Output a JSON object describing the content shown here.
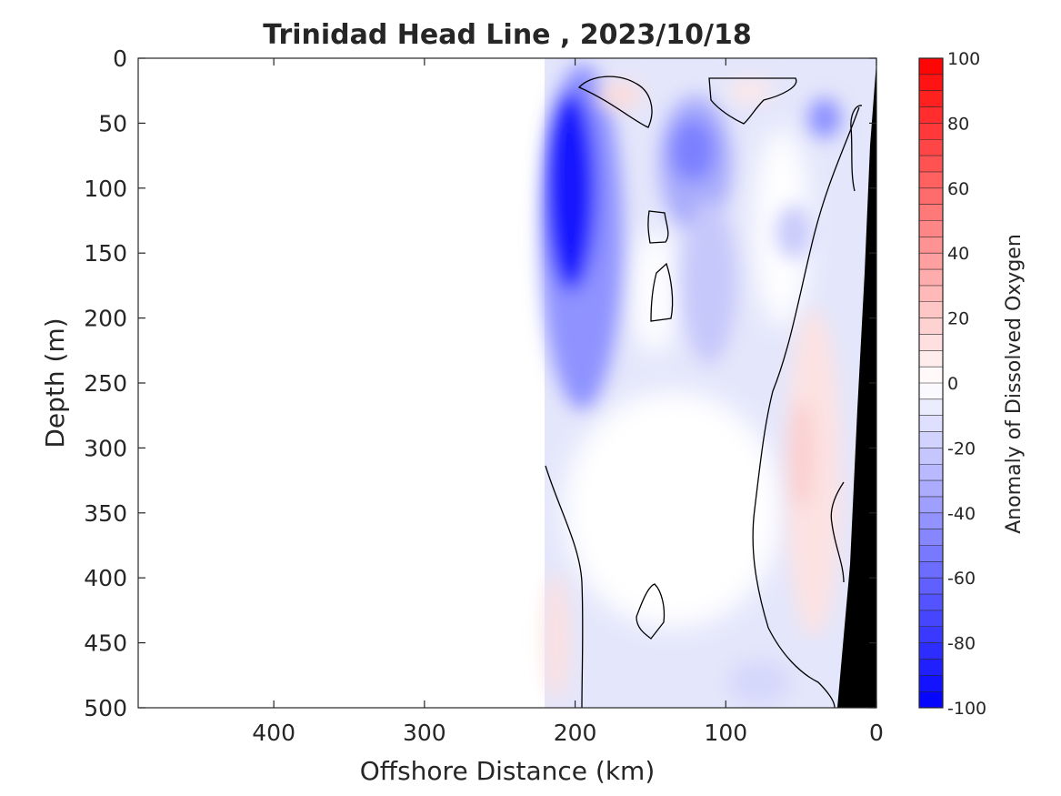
{
  "chart_data": {
    "type": "heatmap",
    "title": "Trinidad Head Line , 2023/10/18",
    "xlabel": "Offshore Distance (km)",
    "ylabel": "Depth (m)",
    "xlim": [
      490,
      0
    ],
    "ylim": [
      0,
      500
    ],
    "x_reversed": true,
    "y_reversed": true,
    "xticks": [
      400,
      300,
      200,
      100,
      0
    ],
    "yticks": [
      0,
      50,
      100,
      150,
      200,
      250,
      300,
      350,
      400,
      450,
      500
    ],
    "data_x_range": [
      220,
      0
    ],
    "colorbar": {
      "label": "Anomaly of Dissolved Oxygen",
      "range": [
        -100,
        100
      ],
      "ticks": [
        100,
        80,
        60,
        40,
        20,
        0,
        -20,
        -40,
        -60,
        -80,
        -100
      ],
      "step": 5,
      "low_color": "#0000ff",
      "mid_color": "#ffffff",
      "high_color": "#ff0000"
    },
    "features": [
      {
        "name": "strong negative anomaly core",
        "x": [
          190,
          210
        ],
        "depth": [
          80,
          170
        ],
        "value": -85
      },
      {
        "name": "negative anomaly lobe",
        "x": [
          110,
          140
        ],
        "depth": [
          60,
          110
        ],
        "value": -45
      },
      {
        "name": "negative anomaly patch",
        "x": [
          25,
          40
        ],
        "depth": [
          35,
          60
        ],
        "value": -40
      },
      {
        "name": "positive anomaly near slope",
        "x": [
          30,
          60
        ],
        "depth": [
          280,
          500
        ],
        "value": 10
      },
      {
        "name": "positive anomaly patch",
        "x": [
          200,
          220
        ],
        "depth": [
          390,
          500
        ],
        "value": 8
      }
    ],
    "zero_contour": true,
    "bathymetry_color": "#000000"
  }
}
